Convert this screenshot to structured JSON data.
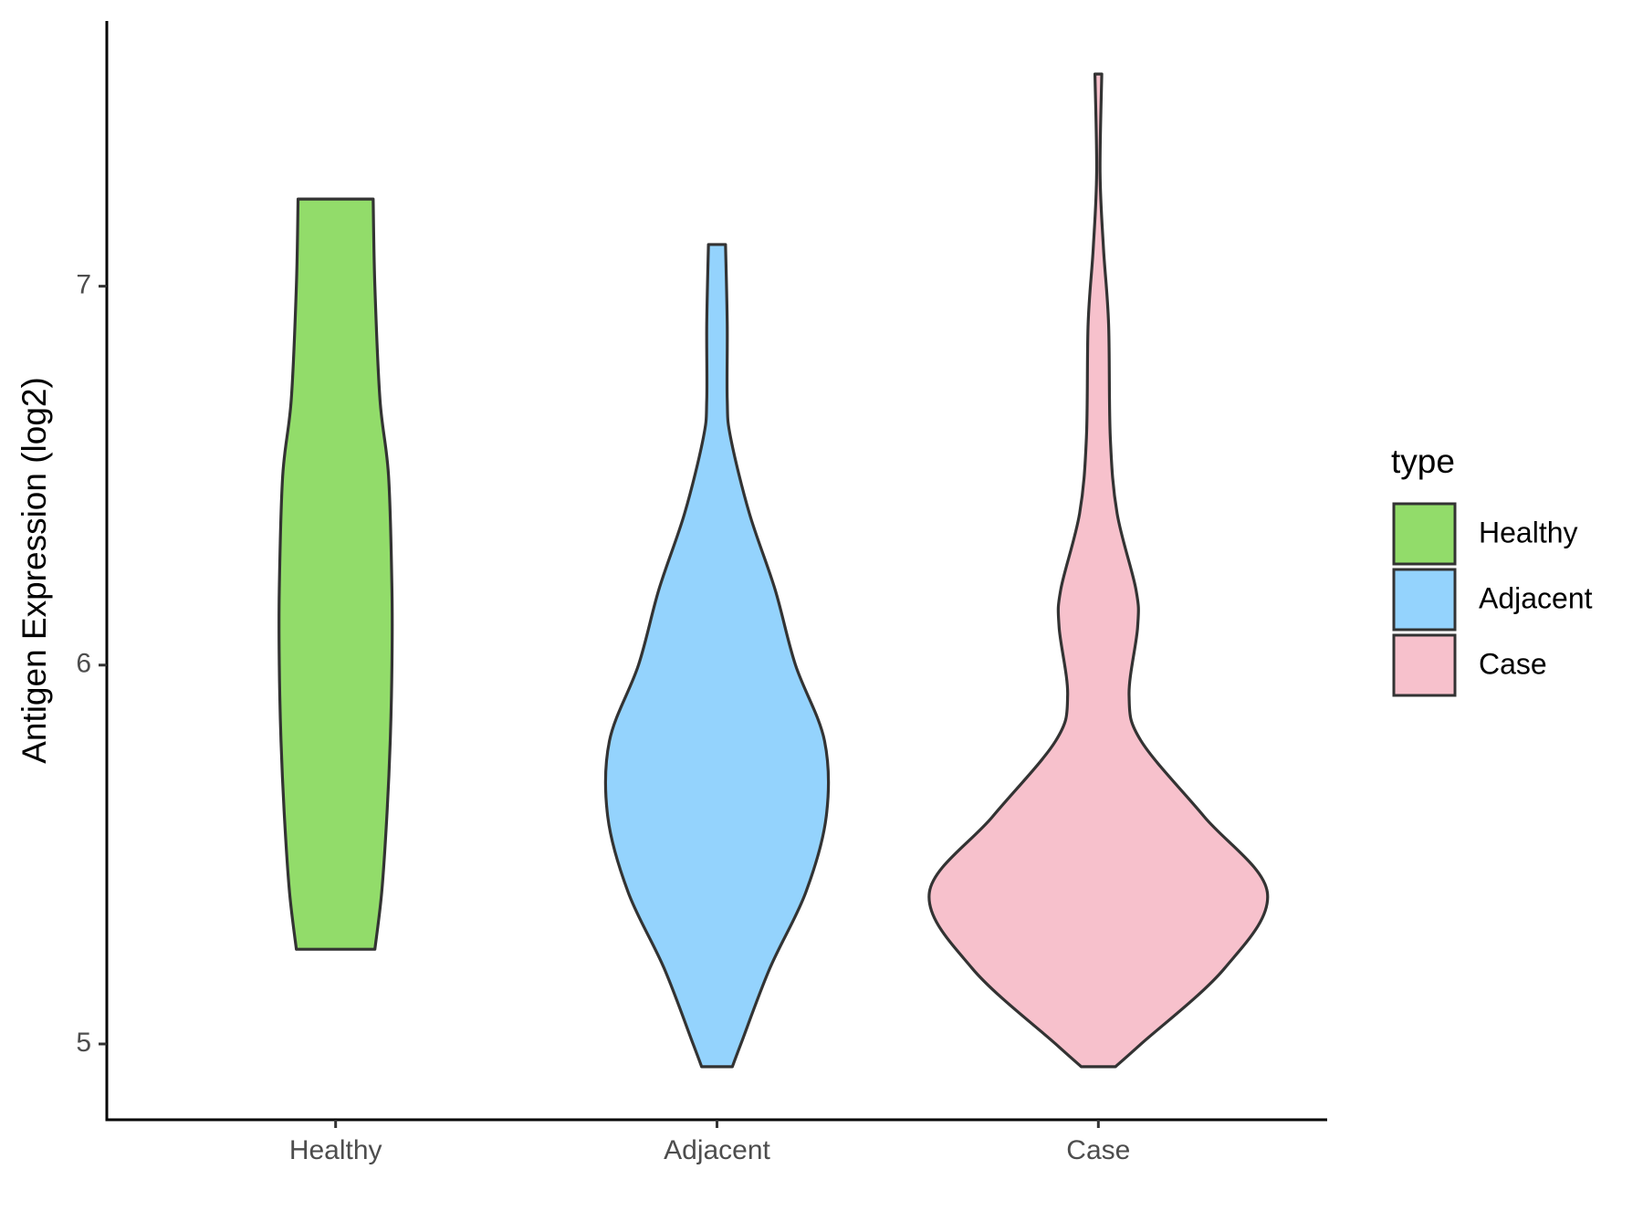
{
  "chart_data": {
    "type": "violin",
    "y_label": "Antigen Expression (log2)",
    "categories": [
      "Healthy",
      "Adjacent",
      "Case"
    ],
    "legend_title": "type",
    "ylim": [
      4.8,
      7.7
    ],
    "yticks": [
      5,
      6,
      7
    ],
    "series": [
      {
        "name": "Healthy",
        "color": "#92dc6a",
        "y": [
          5.25,
          5.4,
          5.6,
          5.8,
          6.0,
          6.2,
          6.5,
          6.7,
          7.0,
          7.23
        ],
        "density": [
          0.23,
          0.27,
          0.3,
          0.32,
          0.33,
          0.33,
          0.31,
          0.26,
          0.23,
          0.22
        ]
      },
      {
        "name": "Adjacent",
        "color": "#94d3fd",
        "y": [
          4.94,
          5.0,
          5.2,
          5.4,
          5.6,
          5.8,
          6.0,
          6.2,
          6.4,
          6.6,
          6.7,
          6.9,
          7.11
        ],
        "density": [
          0.09,
          0.14,
          0.31,
          0.52,
          0.64,
          0.63,
          0.46,
          0.34,
          0.19,
          0.08,
          0.06,
          0.06,
          0.05
        ]
      },
      {
        "name": "Case",
        "color": "#f7c1cc",
        "y": [
          4.94,
          5.0,
          5.2,
          5.4,
          5.6,
          5.8,
          5.92,
          6.1,
          6.2,
          6.4,
          6.6,
          6.9,
          7.1,
          7.3,
          7.56
        ],
        "density": [
          0.1,
          0.25,
          0.74,
          0.99,
          0.62,
          0.25,
          0.18,
          0.23,
          0.22,
          0.11,
          0.07,
          0.06,
          0.03,
          0.01,
          0.02
        ]
      }
    ]
  }
}
